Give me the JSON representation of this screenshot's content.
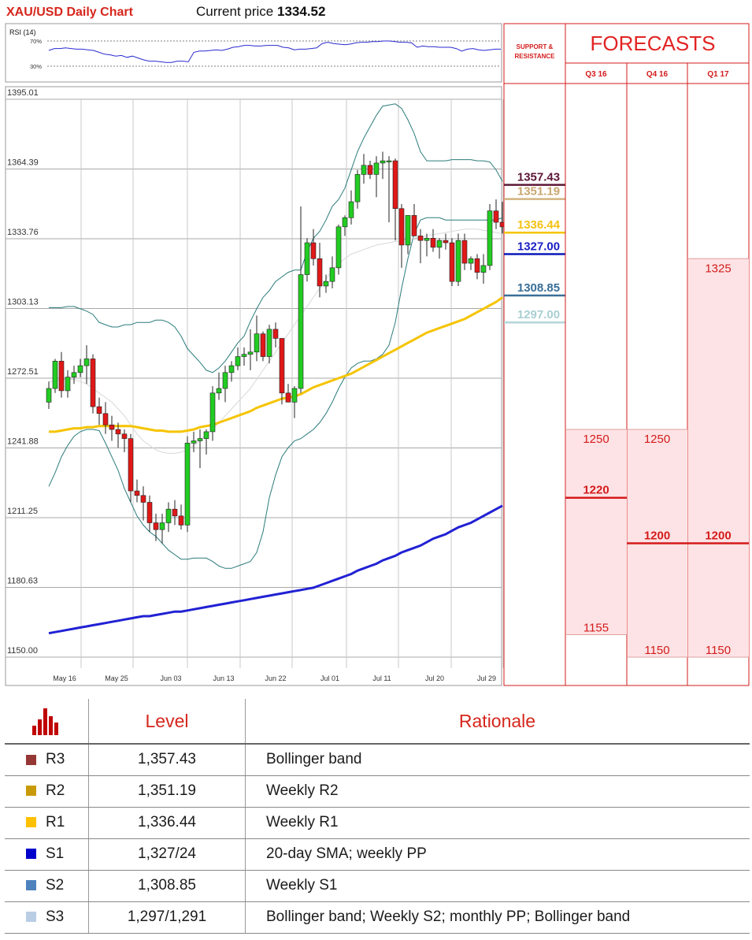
{
  "header": {
    "title": "XAU/USD Daily Chart",
    "price_label": "Current price",
    "price_value": "1334.52"
  },
  "rsi": {
    "label": "RSI (14)",
    "upper_label": "70%",
    "lower_label": "30%",
    "values": [
      55,
      58,
      58,
      59,
      58,
      57,
      57,
      56,
      55,
      52,
      49,
      48,
      46,
      47,
      44,
      46,
      43,
      40,
      38,
      38,
      37,
      36,
      36,
      38,
      38,
      37,
      52,
      54,
      54,
      55,
      56,
      55,
      57,
      60,
      61,
      63,
      63,
      62,
      62,
      63,
      63,
      63,
      60,
      59,
      56,
      57,
      57,
      58,
      59,
      66,
      68,
      66,
      65,
      64,
      65,
      67,
      68,
      68,
      69,
      69,
      70,
      70,
      69,
      68,
      68,
      67,
      60,
      62,
      61,
      61,
      60,
      60,
      60,
      58,
      54,
      57,
      58,
      56,
      55,
      56,
      57,
      57
    ]
  },
  "chart_data": {
    "type": "candlestick",
    "yticks": [
      "1395.01",
      "1364.39",
      "1333.76",
      "1303.13",
      "1272.51",
      "1241.88",
      "1211.25",
      "1180.63",
      "1150.00"
    ],
    "ylim": [
      1150.0,
      1395.01
    ],
    "xticks": [
      "May 16",
      "May 25",
      "Jun 03",
      "Jun 13",
      "Jun 22",
      "Jul 01",
      "Jul 11",
      "Jul 20",
      "Jul 29"
    ],
    "candles": [
      [
        1262,
        1271,
        1259,
        1268
      ],
      [
        1268,
        1281,
        1266,
        1280
      ],
      [
        1280,
        1284,
        1264,
        1267
      ],
      [
        1267,
        1276,
        1264,
        1273
      ],
      [
        1273,
        1278,
        1270,
        1275
      ],
      [
        1275,
        1281,
        1273,
        1278
      ],
      [
        1278,
        1287,
        1270,
        1281
      ],
      [
        1281,
        1283,
        1257,
        1260
      ],
      [
        1260,
        1264,
        1252,
        1257
      ],
      [
        1257,
        1262,
        1248,
        1252
      ],
      [
        1252,
        1256,
        1245,
        1250
      ],
      [
        1250,
        1253,
        1242,
        1248
      ],
      [
        1248,
        1250,
        1240,
        1246
      ],
      [
        1246,
        1248,
        1218,
        1223
      ],
      [
        1223,
        1228,
        1218,
        1221
      ],
      [
        1221,
        1225,
        1210,
        1218
      ],
      [
        1218,
        1221,
        1205,
        1209
      ],
      [
        1209,
        1213,
        1201,
        1206
      ],
      [
        1206,
        1213,
        1200,
        1209
      ],
      [
        1209,
        1218,
        1205,
        1215
      ],
      [
        1215,
        1219,
        1208,
        1212
      ],
      [
        1212,
        1217,
        1206,
        1208
      ],
      [
        1208,
        1247,
        1205,
        1244
      ],
      [
        1244,
        1249,
        1240,
        1245
      ],
      [
        1245,
        1250,
        1233,
        1246
      ],
      [
        1246,
        1250,
        1239,
        1249
      ],
      [
        1249,
        1269,
        1245,
        1266
      ],
      [
        1266,
        1275,
        1263,
        1268
      ],
      [
        1268,
        1278,
        1262,
        1275
      ],
      [
        1275,
        1280,
        1271,
        1278
      ],
      [
        1278,
        1286,
        1276,
        1282
      ],
      [
        1282,
        1286,
        1278,
        1283
      ],
      [
        1283,
        1294,
        1276,
        1284
      ],
      [
        1284,
        1300,
        1280,
        1292
      ],
      [
        1292,
        1293,
        1280,
        1282
      ],
      [
        1282,
        1296,
        1279,
        1294
      ],
      [
        1294,
        1297,
        1286,
        1290
      ],
      [
        1290,
        1289,
        1261,
        1266
      ],
      [
        1266,
        1270,
        1262,
        1262
      ],
      [
        1262,
        1269,
        1255,
        1268
      ],
      [
        1268,
        1348,
        1266,
        1318
      ],
      [
        1318,
        1334,
        1315,
        1332
      ],
      [
        1332,
        1338,
        1322,
        1325
      ],
      [
        1325,
        1332,
        1308,
        1313
      ],
      [
        1313,
        1318,
        1310,
        1315
      ],
      [
        1315,
        1326,
        1312,
        1321
      ],
      [
        1321,
        1340,
        1318,
        1339
      ],
      [
        1339,
        1344,
        1335,
        1343
      ],
      [
        1343,
        1355,
        1340,
        1350
      ],
      [
        1350,
        1364,
        1347,
        1362
      ],
      [
        1362,
        1371,
        1358,
        1366
      ],
      [
        1366,
        1368,
        1360,
        1362
      ],
      [
        1362,
        1370,
        1352,
        1367
      ],
      [
        1367,
        1372,
        1360,
        1368
      ],
      [
        1368,
        1370,
        1341,
        1368
      ],
      [
        1368,
        1369,
        1333,
        1347
      ],
      [
        1347,
        1349,
        1321,
        1331
      ],
      [
        1331,
        1344,
        1327,
        1344
      ],
      [
        1344,
        1349,
        1335,
        1335
      ],
      [
        1335,
        1338,
        1323,
        1333
      ],
      [
        1333,
        1336,
        1326,
        1334
      ],
      [
        1334,
        1338,
        1328,
        1330
      ],
      [
        1330,
        1334,
        1325,
        1333
      ],
      [
        1333,
        1336,
        1329,
        1332
      ],
      [
        1332,
        1334,
        1313,
        1315
      ],
      [
        1315,
        1336,
        1313,
        1333
      ],
      [
        1333,
        1336,
        1320,
        1323
      ],
      [
        1323,
        1326,
        1320,
        1325
      ],
      [
        1325,
        1327,
        1316,
        1319
      ],
      [
        1319,
        1327,
        1314,
        1322
      ],
      [
        1322,
        1349,
        1320,
        1346
      ],
      [
        1346,
        1351,
        1338,
        1341
      ],
      [
        1341,
        1350,
        1336,
        1339
      ]
    ],
    "sma100": [
      1249,
      1249,
      1249.5,
      1250,
      1250.5,
      1250.5,
      1251,
      1251,
      1251.5,
      1251.5,
      1251.5,
      1251.5,
      1251.5,
      1251.5,
      1251,
      1250.5,
      1250,
      1249.5,
      1249.5,
      1249,
      1249,
      1249,
      1249.5,
      1250,
      1251,
      1251.5,
      1252,
      1253,
      1254,
      1255,
      1256,
      1257,
      1258,
      1259.5,
      1260.5,
      1261.5,
      1262.5,
      1263.5,
      1264,
      1264.5,
      1265.5,
      1267,
      1268.5,
      1269.5,
      1270.5,
      1271.5,
      1272.5,
      1273.5,
      1274.5,
      1276,
      1277.5,
      1279,
      1280.5,
      1282,
      1283.5,
      1285,
      1286.5,
      1288,
      1289.5,
      1291,
      1292.5,
      1293.5,
      1294.5,
      1295.5,
      1296.5,
      1297.5,
      1298.5,
      1300,
      1301.5,
      1303,
      1304.5,
      1306,
      1308
    ],
    "sma200": [
      1160.5,
      1161,
      1161.5,
      1162,
      1162.5,
      1163,
      1163.5,
      1164,
      1164.5,
      1165,
      1165.5,
      1166,
      1166.5,
      1167,
      1167.5,
      1168,
      1168,
      1168.5,
      1169,
      1169.5,
      1170,
      1170,
      1170.5,
      1171,
      1171.5,
      1172,
      1172.5,
      1173,
      1173.5,
      1174,
      1174.5,
      1175,
      1175.5,
      1176,
      1176.5,
      1177,
      1177.5,
      1178,
      1178.5,
      1179,
      1179.5,
      1180,
      1180.5,
      1181.5,
      1182.5,
      1183.5,
      1184.5,
      1185.5,
      1186.5,
      1188,
      1189,
      1190,
      1191,
      1192.5,
      1193.5,
      1194.5,
      1196,
      1197,
      1198,
      1199,
      1200.5,
      1202,
      1203,
      1204,
      1205.5,
      1207,
      1208,
      1209,
      1210.5,
      1212,
      1213.5,
      1215,
      1216.5
    ],
    "bb_upper": [
      1303.5,
      1303.5,
      1303.5,
      1304,
      1304,
      1303,
      1302,
      1300.5,
      1297,
      1296,
      1295,
      1295,
      1296,
      1296,
      1297,
      1297,
      1297,
      1298,
      1298,
      1297,
      1295,
      1291,
      1285.5,
      1282.5,
      1279.5,
      1276,
      1275,
      1277,
      1280,
      1284,
      1288,
      1291,
      1297.5,
      1303,
      1308,
      1311,
      1315,
      1317,
      1319,
      1320,
      1320,
      1328,
      1334,
      1337,
      1342,
      1348,
      1351,
      1356,
      1364,
      1372,
      1378,
      1383,
      1388,
      1392,
      1392.5,
      1393,
      1391,
      1386,
      1380,
      1372,
      1368,
      1368,
      1368,
      1368,
      1368.5,
      1368.5,
      1368.5,
      1368.5,
      1368,
      1368,
      1367.5,
      1364,
      1359
    ],
    "bb_lower": [
      1225,
      1231,
      1238,
      1243,
      1247,
      1249,
      1250,
      1250,
      1249.5,
      1244,
      1238,
      1232,
      1224,
      1218,
      1212,
      1208,
      1205,
      1203,
      1200,
      1197,
      1195,
      1193,
      1193,
      1193.5,
      1193.5,
      1193.5,
      1192,
      1190,
      1189,
      1189,
      1190,
      1191,
      1192,
      1196,
      1205,
      1220,
      1230,
      1238,
      1242,
      1245,
      1246,
      1248,
      1250,
      1253,
      1257,
      1262,
      1268,
      1273,
      1277,
      1279,
      1280,
      1280,
      1281,
      1283,
      1287,
      1297,
      1312,
      1325,
      1336,
      1342,
      1343,
      1343,
      1343,
      1342,
      1342,
      1342,
      1342,
      1342,
      1342,
      1342,
      1342,
      1342,
      1343
    ],
    "sma20": [
      1271,
      1271,
      1272,
      1272,
      1272,
      1271,
      1270,
      1268,
      1266,
      1264,
      1262,
      1259,
      1256,
      1252,
      1248,
      1245,
      1243,
      1241,
      1240,
      1239.5,
      1239.5,
      1240,
      1241,
      1243,
      1245,
      1248,
      1250,
      1253,
      1256,
      1259,
      1262,
      1265,
      1268,
      1272,
      1276,
      1280,
      1284,
      1288,
      1292,
      1296,
      1300,
      1304,
      1308,
      1312,
      1316,
      1320,
      1323,
      1325,
      1327,
      1328,
      1329,
      1330,
      1331,
      1331.5,
      1332,
      1332.5,
      1333,
      1333.5,
      1334,
      1334.5,
      1335,
      1335.5,
      1336,
      1336.5,
      1337,
      1337.5,
      1338,
      1338,
      1338,
      1337.5,
      1337,
      1336.5,
      1336
    ]
  },
  "levels_panel": {
    "heading": "SUPPORT & RESISTANCE",
    "lines": [
      {
        "value": "1357.43",
        "price": 1357.43,
        "color": "#5c1736",
        "line": "#5c1736"
      },
      {
        "value": "1351.19",
        "price": 1351.19,
        "color": "#caa770",
        "line": "#d3b27f"
      },
      {
        "value": "1336.44",
        "price": 1336.44,
        "color": "#f4c213",
        "line": "#f5c400"
      },
      {
        "value": "1327.00",
        "price": 1327.0,
        "color": "#1a1fc4",
        "line": "#0c1ab8"
      },
      {
        "value": "1308.85",
        "price": 1308.85,
        "color": "#3a6f98",
        "line": "#3a6f98"
      },
      {
        "value": "1297.00",
        "price": 1297.0,
        "color": "#a9cfd2",
        "line": "#b5d6d8"
      }
    ]
  },
  "forecasts": {
    "title": "FORECASTS",
    "columns": [
      {
        "label": "Q3 16",
        "high": "1250",
        "median": "1220",
        "low": "1155"
      },
      {
        "label": "Q4 16",
        "high": "1250",
        "median": "1200",
        "low": "1150"
      },
      {
        "label": "Q1 17",
        "high": "1325",
        "median": "1200",
        "low": "1150"
      }
    ]
  },
  "table": {
    "headers": {
      "level": "Level",
      "rationale": "Rationale"
    },
    "rows": [
      {
        "name": "R3",
        "level": "1,357.43",
        "rationale": "Bollinger band",
        "color": "#953735"
      },
      {
        "name": "R2",
        "level": "1,351.19",
        "rationale": "Weekly R2",
        "color": "#c89a0a"
      },
      {
        "name": "R1",
        "level": "1,336.44",
        "rationale": "Weekly R1",
        "color": "#ffc000"
      },
      {
        "name": "S1",
        "level": "1,327/24",
        "rationale": "20-day SMA; weekly PP",
        "color": "#0000cc"
      },
      {
        "name": "S2",
        "level": "1,308.85",
        "rationale": "Weekly S1",
        "color": "#4f81bd"
      },
      {
        "name": "S3",
        "level": "1,297/1,291",
        "rationale": "Bollinger band; Weekly S2; monthly PP; Bollinger band",
        "color": "#b9cde5"
      }
    ]
  }
}
